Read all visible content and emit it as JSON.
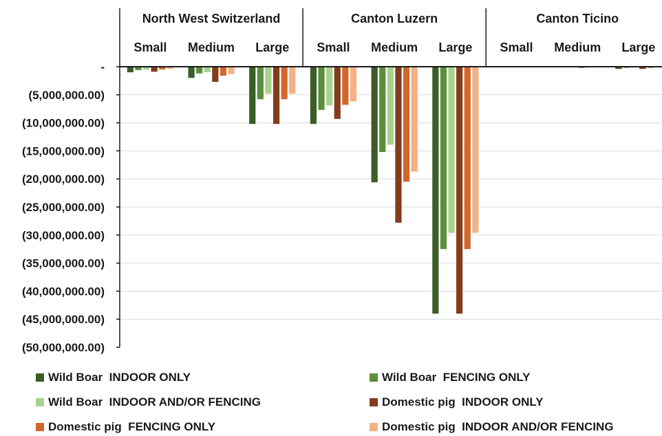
{
  "chart_data": {
    "type": "bar",
    "orientation": "vertical",
    "regions": [
      "North West Switzerland",
      "Canton Luzern",
      "Canton Ticino"
    ],
    "sizes": [
      "Small",
      "Medium",
      "Large"
    ],
    "y_tick_labels": [
      "-",
      "(5,000,000.00)",
      "(10,000,000.00)",
      "(15,000,000.00)",
      "(20,000,000.00)",
      "(25,000,000.00)",
      "(30,000,000.00)",
      "(35,000,000.00)",
      "(40,000,000.00)",
      "(45,000,000.00)",
      "(50,000,000.00)"
    ],
    "ylim": [
      -50000000,
      0
    ],
    "grid": true,
    "legend_position": "bottom",
    "series": [
      {
        "name": "Wild Boar  INDOOR ONLY",
        "color": "#3a5e26",
        "values": [
          -1000000,
          -2000000,
          -10200000,
          -10200000,
          -20600000,
          -44000000,
          -50000,
          -100000,
          -400000
        ]
      },
      {
        "name": "Wild Boar  FENCING ONLY",
        "color": "#5b8f3c",
        "values": [
          -600000,
          -1200000,
          -5800000,
          -7700000,
          -15200000,
          -32500000,
          -30000,
          -60000,
          -200000
        ]
      },
      {
        "name": "Wild Boar  INDOOR AND/OR FENCING",
        "color": "#a9d18e",
        "values": [
          -500000,
          -1000000,
          -4800000,
          -6900000,
          -13900000,
          -29600000,
          -30000,
          -50000,
          -150000
        ]
      },
      {
        "name": "Domestic pig  INDOOR ONLY",
        "color": "#843c1c",
        "values": [
          -900000,
          -2700000,
          -10200000,
          -9300000,
          -27800000,
          -44000000,
          -50000,
          -200000,
          -400000
        ]
      },
      {
        "name": "Domestic pig  FENCING ONLY",
        "color": "#d2672c",
        "values": [
          -500000,
          -1600000,
          -5800000,
          -6800000,
          -20500000,
          -32500000,
          -30000,
          -100000,
          -200000
        ]
      },
      {
        "name": "Domestic pig  INDOOR AND/OR FENCING",
        "color": "#f4b183",
        "values": [
          -400000,
          -1300000,
          -4800000,
          -6200000,
          -18700000,
          -29600000,
          -30000,
          -80000,
          -150000
        ]
      }
    ]
  }
}
